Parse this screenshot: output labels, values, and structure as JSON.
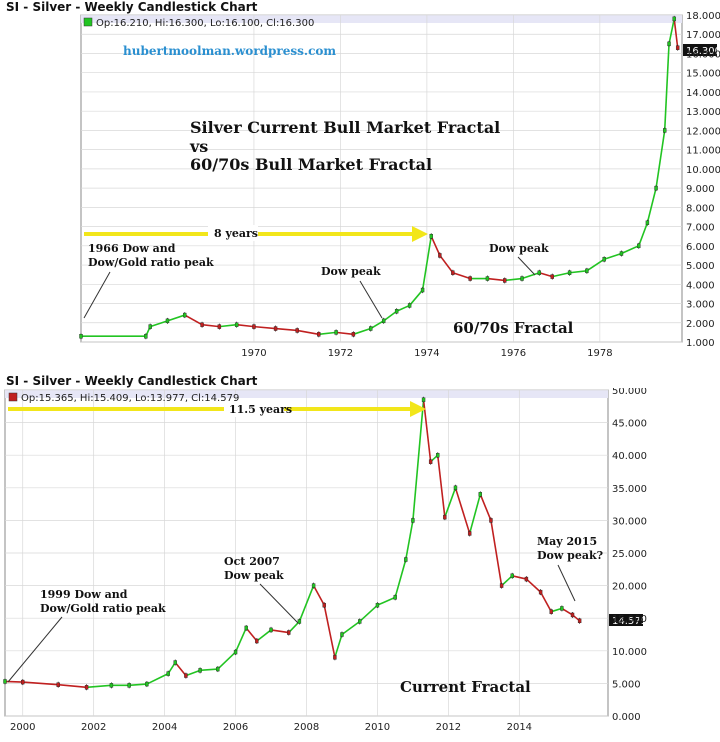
{
  "top": {
    "title": "SI - Silver - Weekly Candlestick Chart",
    "ohlc_legend": "Op:16.210, Hi:16.300, Lo:16.100, Cl:16.300",
    "watermark": "hubertmoolman.wordpress.com",
    "headline_1": "Silver Current Bull Market Fractal",
    "headline_2": "vs",
    "headline_3": "60/70s Bull Market Fractal",
    "arrow_label": "8 years",
    "peak_note_1": "1966 Dow and",
    "peak_note_2": "Dow/Gold ratio peak",
    "dow_peak_1": "Dow peak",
    "dow_peak_2": "Dow peak",
    "fractal_label": "60/70s Fractal",
    "last_price": "16.300"
  },
  "bottom": {
    "title": "SI - Silver - Weekly Candlestick Chart",
    "ohlc_legend": "Op:15.365, Hi:15.409, Lo:13.977, Cl:14.579",
    "arrow_label": "11.5 years",
    "peak_note_1": "1999 Dow and",
    "peak_note_2": "Dow/Gold ratio peak",
    "oct_note_1": "Oct 2007",
    "oct_note_2": "Dow peak",
    "may_note_1": "May 2015",
    "may_note_2": "Dow peak?",
    "fractal_label": "Current Fractal",
    "last_price": "14.579"
  },
  "colors": {
    "up": "#22c422",
    "down": "#c02020",
    "arrow": "#f2e61a",
    "highlight": "#e6e6f6"
  },
  "chart_data": [
    {
      "type": "line",
      "title": "SI - Silver - Weekly Candlestick Chart",
      "x_ticks": [
        "1970",
        "1972",
        "1974",
        "1976",
        "1978"
      ],
      "y_ticks": [
        "1.000",
        "2.000",
        "3.000",
        "4.000",
        "5.000",
        "6.000",
        "7.000",
        "8.000",
        "9.000",
        "10.000",
        "11.000",
        "12.000",
        "13.000",
        "14.000",
        "15.000",
        "16.000",
        "17.000",
        "18.000"
      ],
      "xlim": [
        1966.0,
        1979.9
      ],
      "ylim": [
        1,
        18
      ],
      "grid": true,
      "series": [
        {
          "x": [
            1966.0,
            1967.5,
            1967.6,
            1968.0,
            1968.4,
            1968.8,
            1969.2,
            1969.6,
            1970.0,
            1970.5,
            1971.0,
            1971.5,
            1971.9,
            1972.3,
            1972.7,
            1973.0,
            1973.3,
            1973.6,
            1973.9,
            1974.1,
            1974.3,
            1974.6,
            1975.0,
            1975.4,
            1975.8,
            1976.2,
            1976.6,
            1976.9,
            1977.3,
            1977.7,
            1978.1,
            1978.5,
            1978.9,
            1979.1,
            1979.3,
            1979.5,
            1979.6,
            1979.72,
            1979.8
          ],
          "y": [
            1.3,
            1.3,
            1.8,
            2.1,
            2.4,
            1.9,
            1.8,
            1.9,
            1.8,
            1.7,
            1.6,
            1.4,
            1.5,
            1.4,
            1.7,
            2.1,
            2.6,
            2.9,
            3.7,
            6.5,
            5.5,
            4.6,
            4.3,
            4.3,
            4.2,
            4.3,
            4.6,
            4.4,
            4.6,
            4.7,
            5.3,
            5.6,
            6.0,
            7.2,
            9.0,
            12.0,
            16.5,
            17.8,
            16.3
          ]
        }
      ]
    },
    {
      "type": "line",
      "title": "SI - Silver - Weekly Candlestick Chart",
      "x_ticks": [
        "2000",
        "2002",
        "2004",
        "2006",
        "2008",
        "2010",
        "2012",
        "2014"
      ],
      "y_ticks": [
        "0.000",
        "5.000",
        "10.000",
        "15.000",
        "20.000",
        "25.000",
        "30.000",
        "35.000",
        "40.000",
        "45.000",
        "50.000"
      ],
      "xlim": [
        1999.5,
        2016.5
      ],
      "ylim": [
        0,
        50
      ],
      "grid": true,
      "series": [
        {
          "x": [
            1999.5,
            2000.0,
            2001.0,
            2001.8,
            2002.5,
            2003.0,
            2003.5,
            2004.1,
            2004.3,
            2004.6,
            2005.0,
            2005.5,
            2006.0,
            2006.3,
            2006.6,
            2007.0,
            2007.5,
            2007.8,
            2008.2,
            2008.5,
            2008.8,
            2009.0,
            2009.5,
            2010.0,
            2010.5,
            2010.8,
            2011.0,
            2011.3,
            2011.5,
            2011.7,
            2011.9,
            2012.2,
            2012.6,
            2012.9,
            2013.2,
            2013.5,
            2013.8,
            2014.2,
            2014.6,
            2014.9,
            2015.2,
            2015.5,
            2015.7
          ],
          "y": [
            5.3,
            5.2,
            4.8,
            4.4,
            4.7,
            4.7,
            4.9,
            6.5,
            8.2,
            6.2,
            7.0,
            7.2,
            9.8,
            13.5,
            11.5,
            13.2,
            12.8,
            14.5,
            20.0,
            17.0,
            9.0,
            12.5,
            14.5,
            17.0,
            18.2,
            24.0,
            30.0,
            48.5,
            39.0,
            40.0,
            30.5,
            35.0,
            28.0,
            34.0,
            30.0,
            20.0,
            21.5,
            21.0,
            19.0,
            16.0,
            16.5,
            15.5,
            14.6
          ]
        }
      ]
    }
  ]
}
